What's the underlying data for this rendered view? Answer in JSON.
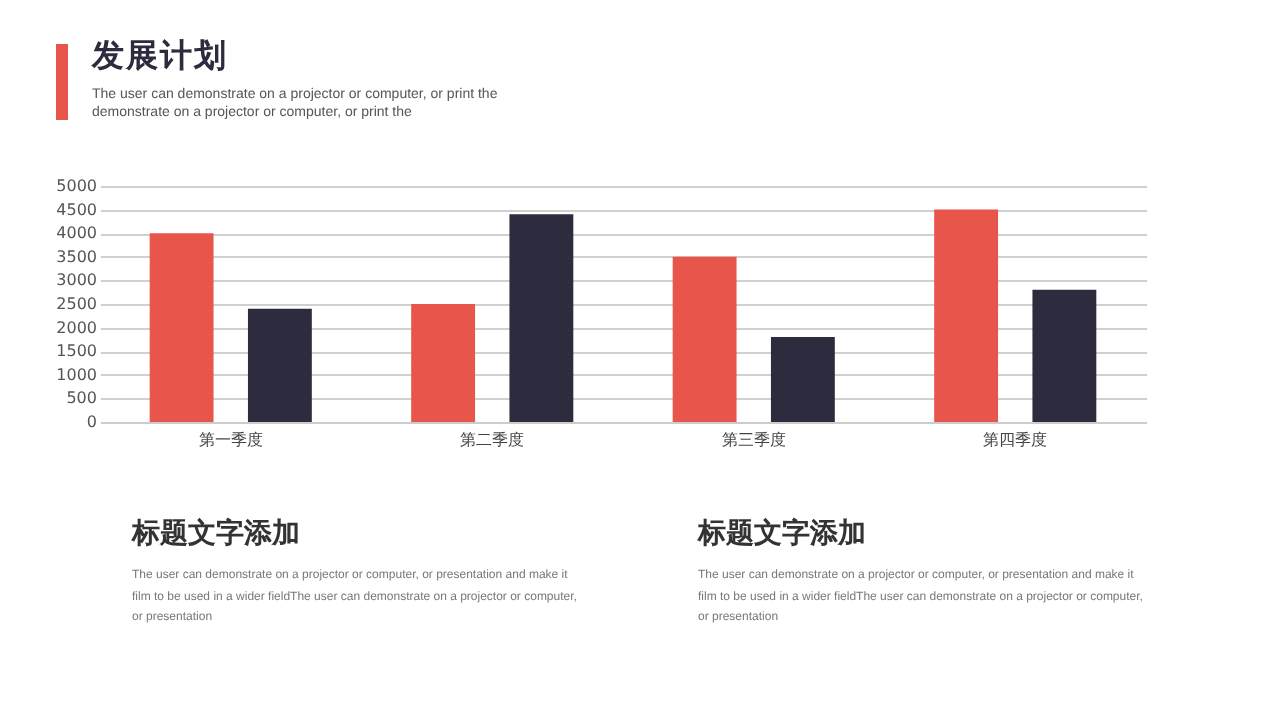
{
  "chart_data": {
    "type": "bar",
    "title": "发展计划",
    "subtitle": "The user can demonstrate on a projector or computer, or print the demonstrate on a projector or computer, or print the",
    "categories": [
      "第一季度",
      "第二季度",
      "第三季度",
      "第四季度"
    ],
    "series": [
      {
        "color": "#e8554a",
        "values": [
          4000,
          2500,
          3500,
          4500
        ]
      },
      {
        "color": "#2d2c3e",
        "values": [
          2400,
          4400,
          1800,
          2800
        ]
      }
    ],
    "ylim": [
      0,
      5000
    ],
    "yticks": [
      0,
      500,
      1000,
      1500,
      2000,
      2500,
      3000,
      3500,
      4000,
      4500,
      5000
    ],
    "grid": "y",
    "annotations": [
      "标题文字添加",
      "The user can demonstrate on a projector or computer, or presentation and make it film to be used in a wider fieldThe user can demonstrate on a projector or computer, or presentation",
      "标题文字添加",
      "The user can demonstrate on a projector or computer, or presentation and make it film to be used in a wider fieldThe user can demonstrate on a projector or computer, or presentation"
    ]
  }
}
